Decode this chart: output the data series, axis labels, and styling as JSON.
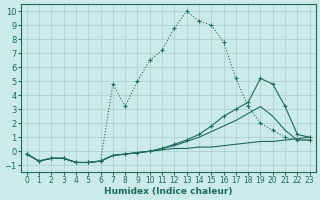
{
  "background_color": "#cceaea",
  "grid_color": "#aacccc",
  "line_color": "#1a6b60",
  "xlabel": "Humidex (Indice chaleur)",
  "xlim": [
    -0.5,
    23.5
  ],
  "ylim": [
    -1.5,
    10.5
  ],
  "xticks": [
    0,
    1,
    2,
    3,
    4,
    5,
    6,
    7,
    8,
    9,
    10,
    11,
    12,
    13,
    14,
    15,
    16,
    17,
    18,
    19,
    20,
    21,
    22,
    23
  ],
  "yticks": [
    -1,
    0,
    1,
    2,
    3,
    4,
    5,
    6,
    7,
    8,
    9,
    10
  ],
  "curve1_x": [
    0,
    1,
    2,
    3,
    4,
    5,
    6,
    7,
    8,
    9,
    10,
    11,
    12,
    13,
    14,
    15,
    16,
    17,
    18,
    19,
    20,
    21,
    22,
    23
  ],
  "curve1_y": [
    -0.2,
    -0.7,
    -0.5,
    -0.5,
    -0.8,
    -0.8,
    -0.7,
    4.8,
    3.2,
    5.0,
    6.5,
    7.2,
    8.8,
    10.0,
    9.3,
    9.0,
    7.8,
    5.2,
    3.2,
    2.0,
    1.5,
    1.0,
    0.8,
    0.8
  ],
  "curve2_x": [
    0,
    1,
    2,
    3,
    4,
    5,
    6,
    7,
    8,
    9,
    10,
    11,
    12,
    13,
    14,
    15,
    16,
    17,
    18,
    19,
    20,
    21,
    22,
    23
  ],
  "curve2_y": [
    -0.2,
    -0.7,
    -0.5,
    -0.5,
    -0.8,
    -0.8,
    -0.7,
    -0.3,
    -0.2,
    -0.1,
    0.0,
    0.2,
    0.5,
    0.8,
    1.2,
    1.8,
    2.5,
    3.0,
    3.5,
    5.2,
    4.8,
    3.2,
    1.2,
    1.0
  ],
  "curve3_x": [
    0,
    1,
    2,
    3,
    4,
    5,
    6,
    7,
    8,
    9,
    10,
    11,
    12,
    13,
    14,
    15,
    16,
    17,
    18,
    19,
    20,
    21,
    22,
    23
  ],
  "curve3_y": [
    -0.2,
    -0.7,
    -0.5,
    -0.5,
    -0.8,
    -0.8,
    -0.7,
    -0.3,
    -0.2,
    -0.1,
    0.0,
    0.2,
    0.4,
    0.7,
    1.0,
    1.4,
    1.8,
    2.2,
    2.7,
    3.2,
    2.5,
    1.5,
    0.8,
    0.8
  ],
  "curve4_x": [
    0,
    1,
    2,
    3,
    4,
    5,
    6,
    7,
    8,
    9,
    10,
    11,
    12,
    13,
    14,
    15,
    16,
    17,
    18,
    19,
    20,
    21,
    22,
    23
  ],
  "curve4_y": [
    -0.2,
    -0.7,
    -0.5,
    -0.5,
    -0.8,
    -0.8,
    -0.7,
    -0.3,
    -0.2,
    -0.1,
    0.0,
    0.1,
    0.2,
    0.2,
    0.3,
    0.3,
    0.4,
    0.5,
    0.6,
    0.7,
    0.7,
    0.8,
    0.9,
    1.0
  ],
  "curve1_has_markers": true,
  "curve2_has_markers": true,
  "curve3_has_markers": false,
  "curve4_has_markers": false
}
